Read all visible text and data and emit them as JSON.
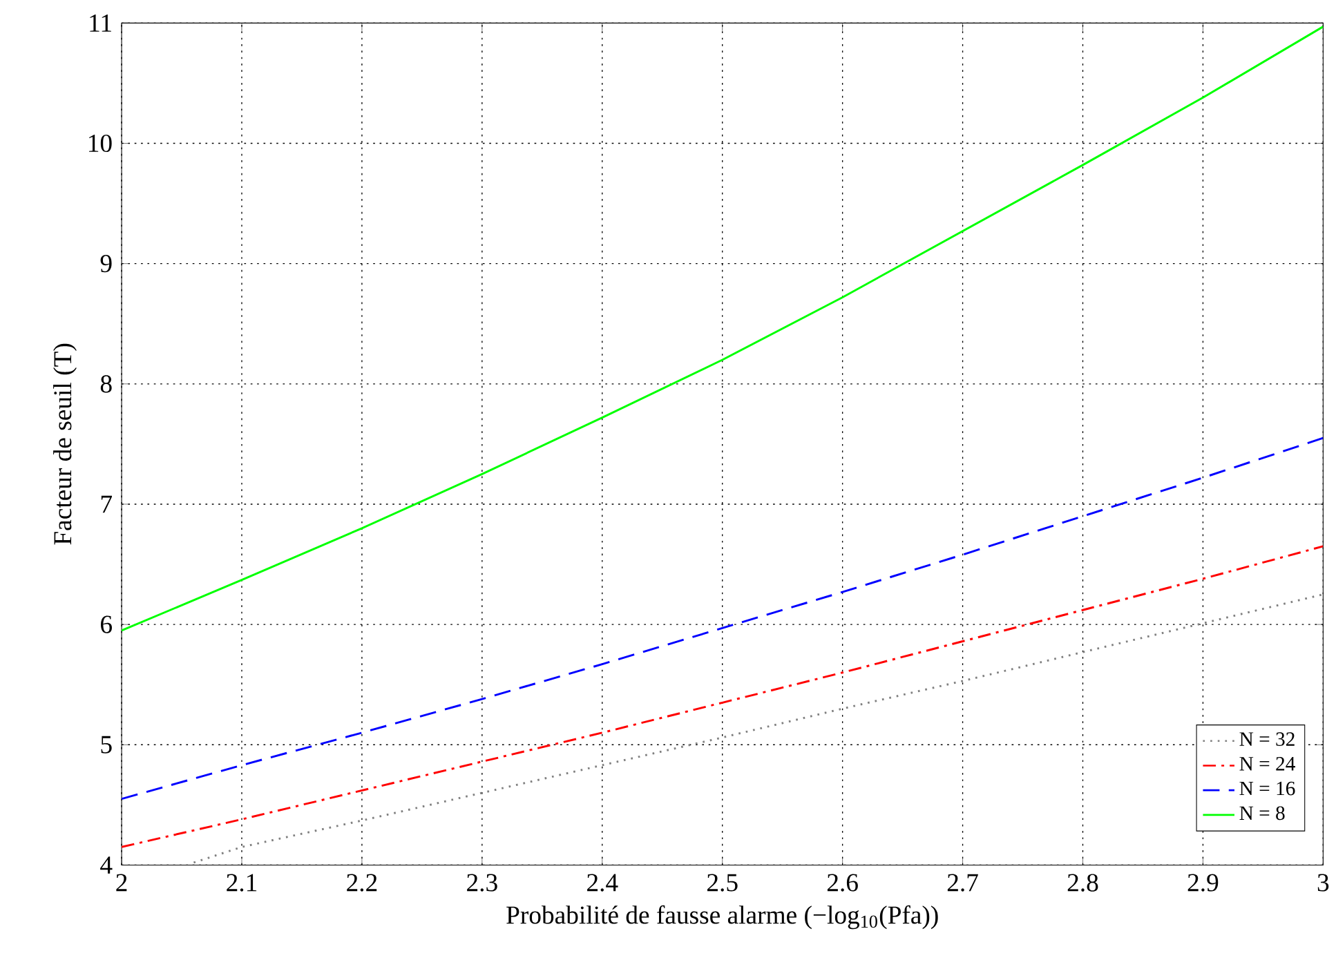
{
  "chart_data": {
    "type": "line",
    "xlabel": "Probabilité de fausse alarme (−log$_{10}$(Pfa))",
    "ylabel": "Facteur de seuil (T)",
    "x": [
      2,
      2.1,
      2.2,
      2.3,
      2.4,
      2.5,
      2.6,
      2.7,
      2.8,
      2.9,
      3
    ],
    "series": [
      {
        "name": "N = 32",
        "color": "#808080",
        "line_style": "dotted",
        "x": [
          2.06,
          2.1,
          2.2,
          2.3,
          2.4,
          2.5,
          2.6,
          2.7,
          2.8,
          2.9,
          3
        ],
        "values": [
          4.02,
          4.15,
          4.37,
          4.6,
          4.83,
          5.06,
          5.3,
          5.53,
          5.77,
          6.01,
          6.25
        ]
      },
      {
        "name": "N = 24",
        "color": "#ff0000",
        "line_style": "dashdot",
        "values": [
          4.15,
          4.38,
          4.62,
          4.86,
          5.1,
          5.35,
          5.6,
          5.86,
          6.12,
          6.38,
          6.65
        ]
      },
      {
        "name": "N = 16",
        "color": "#0000ff",
        "line_style": "dashed",
        "values": [
          4.55,
          4.83,
          5.1,
          5.38,
          5.67,
          5.97,
          6.27,
          6.58,
          6.9,
          7.22,
          7.55
        ]
      },
      {
        "name": "N = 8",
        "color": "#00ff00",
        "line_style": "solid",
        "values": [
          5.95,
          6.37,
          6.8,
          7.25,
          7.72,
          8.2,
          8.72,
          9.27,
          9.82,
          10.38,
          10.97
        ]
      }
    ],
    "xlim": [
      2,
      3
    ],
    "ylim": [
      4,
      11
    ],
    "xticks": [
      2,
      2.1,
      2.2,
      2.3,
      2.4,
      2.5,
      2.6,
      2.7,
      2.8,
      2.9,
      3
    ],
    "yticks": [
      4,
      5,
      6,
      7,
      8,
      9,
      10,
      11
    ],
    "grid": true,
    "legend": "bottom right"
  }
}
